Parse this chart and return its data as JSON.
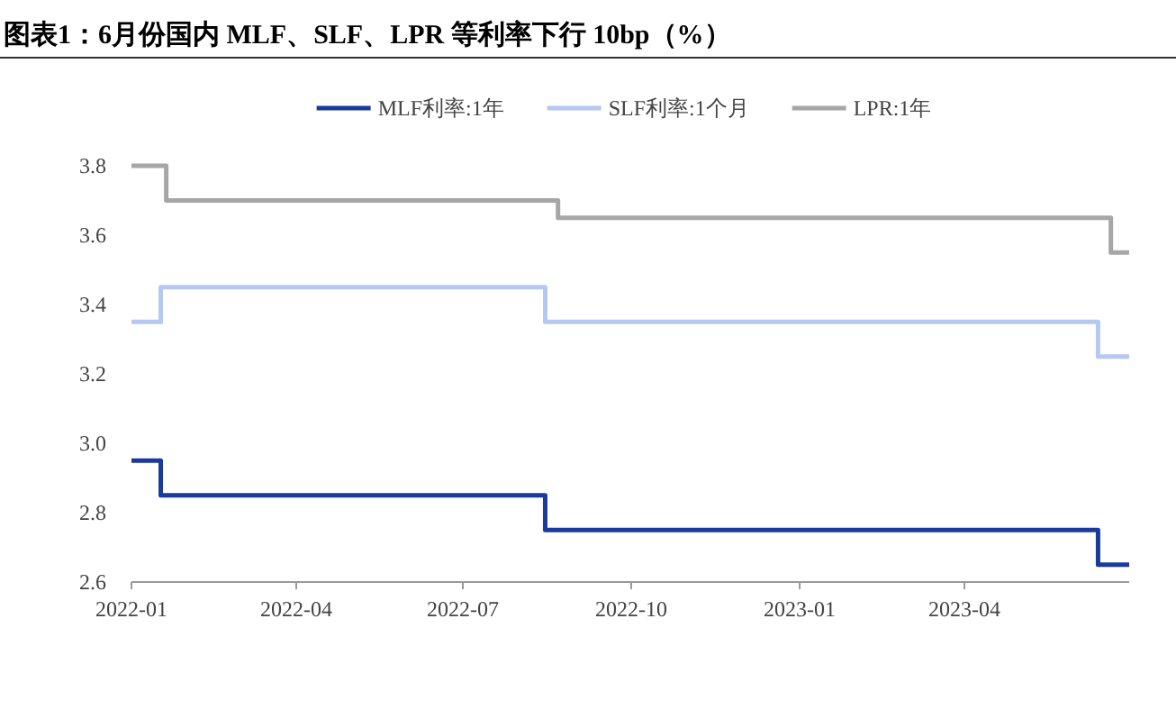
{
  "chart_data": {
    "type": "step",
    "title": "图表1：6月份国内 MLF、SLF、LPR 等利率下行 10bp（%）",
    "legend": "top",
    "xlim": [
      "2022-01-01",
      "2023-06-30"
    ],
    "xticks": [
      "2022-01",
      "2022-04",
      "2022-07",
      "2022-10",
      "2023-01",
      "2023-04"
    ],
    "ylim": [
      2.6,
      3.8
    ],
    "yticks": [
      {
        "value": 2.6,
        "label": "2.6"
      },
      {
        "value": 2.8,
        "label": "2.8"
      },
      {
        "value": 3,
        "label": "3.0"
      },
      {
        "value": 3.2,
        "label": "3.2"
      },
      {
        "value": 3.4,
        "label": "3.4"
      },
      {
        "value": 3.6,
        "label": "3.6"
      },
      {
        "value": 3.8,
        "label": "3.8"
      }
    ],
    "series": [
      {
        "name": "MLF利率:1年",
        "color": "#1a3a9c",
        "x": [
          "2022-01-01",
          "2022-01-17",
          "2022-08-15",
          "2023-06-13",
          "2023-06-30"
        ],
        "values": [
          2.95,
          2.85,
          2.75,
          2.65,
          2.65
        ]
      },
      {
        "name": "SLF利率:1个月",
        "color": "#b4c8f2",
        "x": [
          "2022-01-01",
          "2022-01-17",
          "2022-08-15",
          "2023-06-13",
          "2023-06-30"
        ],
        "values": [
          3.35,
          3.45,
          3.35,
          3.25,
          3.25
        ]
      },
      {
        "name": "LPR:1年",
        "color": "#a6a6a6",
        "x": [
          "2022-01-01",
          "2022-01-20",
          "2022-08-22",
          "2023-06-20",
          "2023-06-30"
        ],
        "values": [
          3.8,
          3.7,
          3.65,
          3.55,
          3.55
        ]
      }
    ]
  }
}
